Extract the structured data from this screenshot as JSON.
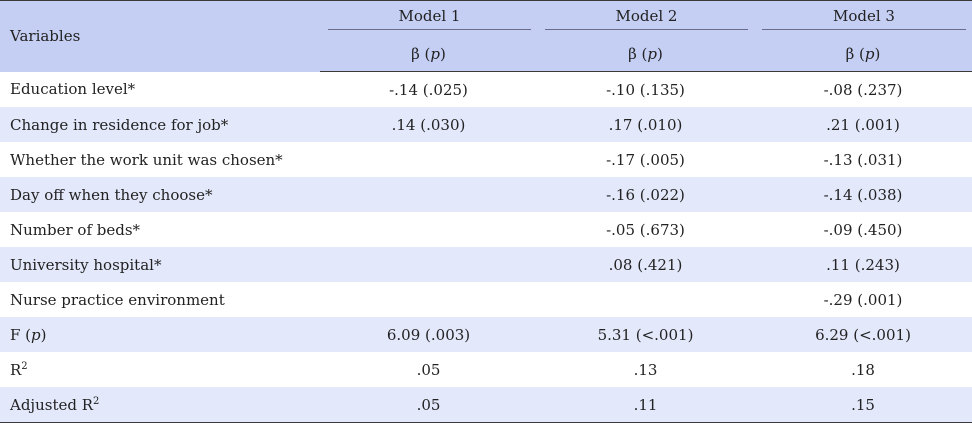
{
  "header": {
    "variables_label": "Variables",
    "models": [
      "Model 1",
      "Model 2",
      "Model 3"
    ],
    "coef_label_prefix": "β (",
    "coef_label_p": "p",
    "coef_label_suffix": ")"
  },
  "rows": [
    {
      "label": "Education level*",
      "m1": "-.14 (.025)",
      "m2": "-.10 (.135)",
      "m3": "-.08 (.237)"
    },
    {
      "label": "Change in residence for job*",
      "m1": ".14 (.030)",
      "m2": ".17 (.010)",
      "m3": ".21 (.001)"
    },
    {
      "label": "Whether the work unit was chosen*",
      "m1": "",
      "m2": "-.17 (.005)",
      "m3": "-.13 (.031)"
    },
    {
      "label": "Day off when they choose*",
      "m1": "",
      "m2": "-.16 (.022)",
      "m3": "-.14 (.038)"
    },
    {
      "label": "Number of beds*",
      "m1": "",
      "m2": "-.05 (.673)",
      "m3": "-.09 (.450)"
    },
    {
      "label": "University hospital*",
      "m1": "",
      "m2": ".08 (.421)",
      "m3": ".11 (.243)"
    },
    {
      "label": "Nurse practice environment",
      "m1": "",
      "m2": "",
      "m3": "-.29 (.001)"
    }
  ],
  "stats": {
    "f_prefix": "F (",
    "f_p": "p",
    "f_suffix": ")",
    "f_values": [
      "6.09 (.003)",
      "5.31 (<.001)",
      "6.29 (<.001)"
    ],
    "r2_base": "R",
    "r2_sup": "2",
    "r2_values": [
      ".05",
      ".13",
      ".18"
    ],
    "adj_r2_base": "Adjusted R",
    "adj_r2_sup": "2",
    "adj_r2_values": [
      ".05",
      ".11",
      ".15"
    ]
  },
  "colors": {
    "header_bg": "#c5cff3",
    "stripe_bg": "#e3e8fb"
  }
}
